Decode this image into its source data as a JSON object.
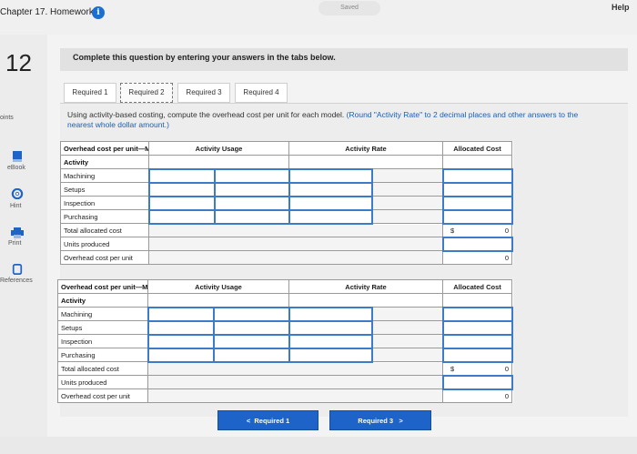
{
  "header": {
    "chapter_title": "Chapter 17. Homework",
    "info_icon": "i",
    "saved_label": "Saved",
    "help_label": "Help"
  },
  "sidebar": {
    "question_number": "12",
    "points_label": "oints",
    "items": [
      {
        "label": "eBook",
        "icon": "book-icon"
      },
      {
        "label": "Hint",
        "icon": "lifebuoy-icon"
      },
      {
        "label": "Print",
        "icon": "printer-icon"
      },
      {
        "label": "References",
        "icon": "references-icon"
      }
    ]
  },
  "prompt": "Complete this question by entering your answers in the tabs below.",
  "tabs": [
    {
      "label": "Required 1",
      "active": false
    },
    {
      "label": "Required 2",
      "active": true
    },
    {
      "label": "Required 3",
      "active": false
    },
    {
      "label": "Required 4",
      "active": false
    }
  ],
  "instructions": {
    "main": "Using activity-based costing, compute the overhead cost per unit for each model.",
    "note": "(Round \"Activity Rate\" to 2 decimal places and other answers to the nearest whole dollar amount.)"
  },
  "table_x": {
    "title": "Overhead cost per unit—Model X",
    "col_activity": "Activity",
    "col_usage": "Activity Usage",
    "col_rate": "Activity Rate",
    "col_allocated": "Allocated Cost",
    "rows": [
      "Machining",
      "Setups",
      "Inspection",
      "Purchasing"
    ],
    "total_label": "Total allocated cost",
    "units_label": "Units produced",
    "per_unit_label": "Overhead cost per unit",
    "currency": "$",
    "total_value": "0",
    "per_unit_value": "0"
  },
  "table_z": {
    "title": "Overhead cost per unit—Model Z",
    "col_activity": "Activity",
    "col_usage": "Activity Usage",
    "col_rate": "Activity Rate",
    "col_allocated": "Allocated Cost",
    "rows": [
      "Machining",
      "Setups",
      "Inspection",
      "Purchasing"
    ],
    "total_label": "Total allocated cost",
    "units_label": "Units produced",
    "per_unit_label": "Overhead cost per unit",
    "currency": "$",
    "total_value": "0",
    "per_unit_value": "0"
  },
  "nav": {
    "prev_label": "Required 1",
    "next_label": "Required 3",
    "prev_icon": "<",
    "next_icon": ">"
  },
  "colors": {
    "accent_blue": "#1d63c8",
    "input_border": "#3b7bc8"
  }
}
